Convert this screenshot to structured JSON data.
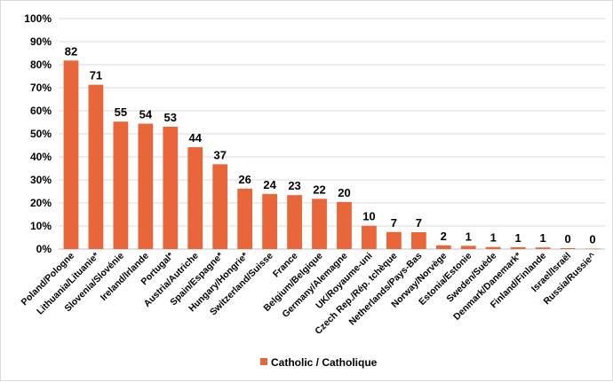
{
  "chart_data": {
    "type": "bar",
    "categories": [
      "Poland/Pologne",
      "Lithuania/Lituanie*",
      "Slovenia/Slovénie",
      "Ireland/Irlande",
      "Portugal*",
      "Austria/Autriche",
      "Spain/Espagne*",
      "Hungary/Hongrie*",
      "Switzerland/Suisse",
      "France",
      "Belgium/Belgique",
      "Germany/Alemagne",
      "UK/Royaume-uni",
      "Czech Rep./Rép. tchèque",
      "Netherlands/Pays-Bas",
      "Norway/Norvège",
      "Estonia/Estonie",
      "Sweden/Suède",
      "Denmark/Danemark*",
      "Finland/Finlande",
      "Israel/Israël",
      "Russia/Russie^"
    ],
    "series": [
      {
        "name": "Catholic / Catholique",
        "values": [
          82,
          71,
          55,
          54,
          53,
          44,
          37,
          26,
          24,
          23,
          22,
          20,
          10,
          7,
          7,
          2,
          1,
          1,
          1,
          1,
          0,
          0
        ],
        "plot_values": [
          81.8,
          71.3,
          55.3,
          54.4,
          53.1,
          44.2,
          36.8,
          26.2,
          23.9,
          23.4,
          21.8,
          20.4,
          10.1,
          7.4,
          7.3,
          1.6,
          1.4,
          0.9,
          0.8,
          0.7,
          0.4,
          0.2
        ],
        "color": "#e8663a"
      }
    ],
    "ylim": [
      0,
      100
    ],
    "yticks": [
      "0%",
      "10%",
      "20%",
      "30%",
      "40%",
      "50%",
      "60%",
      "70%",
      "80%",
      "90%",
      "100%"
    ],
    "grid": true,
    "legend": "bottom"
  }
}
